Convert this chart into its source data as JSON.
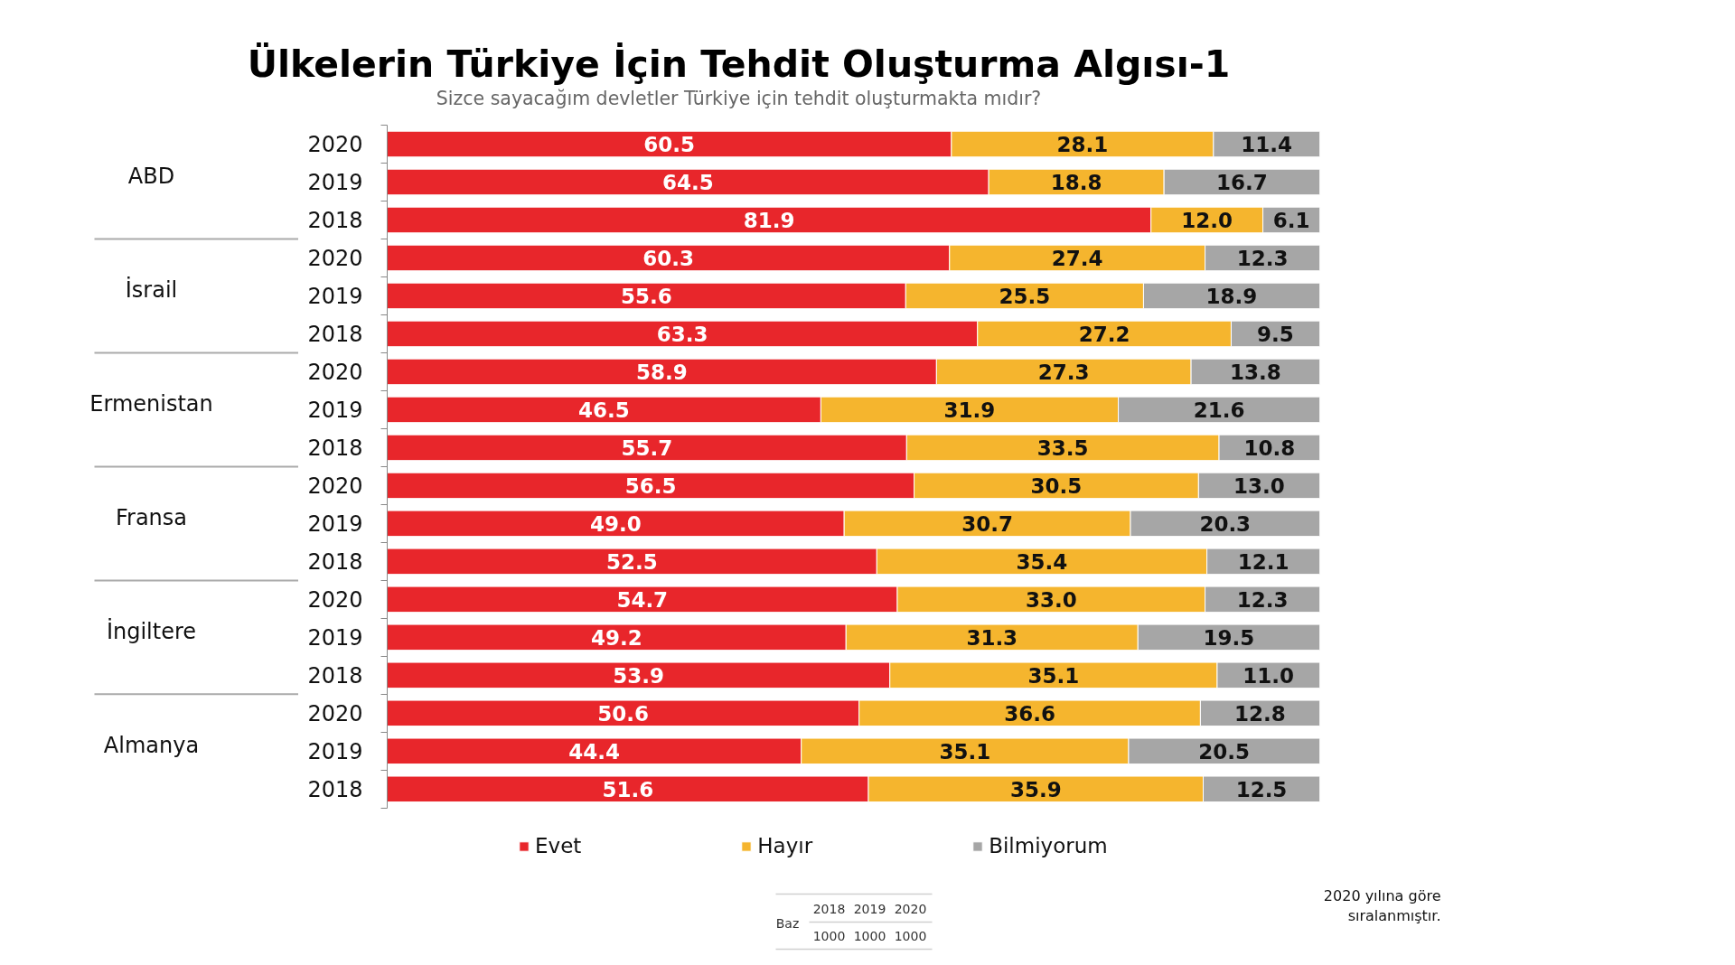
{
  "chart_data": {
    "type": "bar",
    "orientation": "horizontal",
    "stacked": true,
    "title": "Ülkelerin Türkiye İçin Tehdit Oluşturma Algısı-1",
    "subtitle": "Sizce sayacağım devletler Türkiye için tehdit oluşturmakta mıdır?",
    "categories": [
      "2020",
      "2019",
      "2018",
      "2020",
      "2019",
      "2018",
      "2020",
      "2019",
      "2018",
      "2020",
      "2019",
      "2018",
      "2020",
      "2019",
      "2018",
      "2020",
      "2019",
      "2018"
    ],
    "series": [
      {
        "name": "Evet",
        "color": "#e8262b",
        "values": [
          60.5,
          64.5,
          81.9,
          60.3,
          55.6,
          63.3,
          58.9,
          46.5,
          55.7,
          56.5,
          49.0,
          52.5,
          54.7,
          49.2,
          53.9,
          50.6,
          44.4,
          51.6
        ],
        "value_labels": [
          "60.5",
          "64.5",
          "81.9",
          "60.3",
          "55.6",
          "63.3",
          "58.9",
          "46.5",
          "55.7",
          "56.5",
          "49.0",
          "52.5",
          "54.7",
          "49.2",
          "53.9",
          "50.6",
          "44.4",
          "51.6"
        ]
      },
      {
        "name": "Hayır",
        "color": "#f5b52e",
        "values": [
          28.1,
          18.8,
          12.0,
          27.4,
          25.5,
          27.2,
          27.3,
          31.9,
          33.5,
          30.5,
          30.7,
          35.4,
          33.0,
          31.3,
          35.1,
          36.6,
          35.1,
          35.9
        ],
        "value_labels": [
          "28.1",
          "18.8",
          "12.0",
          "27.4",
          "25.5",
          "27.2",
          "27.3",
          "31.9",
          "33.5",
          "30.5",
          "30.7",
          "35.4",
          "33.0",
          "31.3",
          "35.1",
          "36.6",
          "35.1",
          "35.9"
        ]
      },
      {
        "name": "Bilmiyorum",
        "color": "#a6a6a6",
        "values": [
          11.4,
          16.7,
          6.1,
          12.3,
          18.9,
          9.5,
          13.8,
          21.6,
          10.8,
          13.0,
          20.3,
          12.1,
          12.3,
          19.5,
          11.0,
          12.8,
          20.5,
          12.5
        ],
        "value_labels": [
          "11.4",
          "16.7",
          "6.1",
          "12.3",
          "18.9",
          "9.5",
          "13.8",
          "21.6",
          "10.8",
          "13.0",
          "20.3",
          "12.1",
          "12.3",
          "19.5",
          "11.0",
          "12.8",
          "20.5",
          "12.5"
        ]
      }
    ],
    "xlim": [
      0,
      100
    ],
    "tick_labels": "y",
    "legend": "bottom",
    "annotations": [
      "ABD",
      "İsrail",
      "Ermenistan",
      "Fransa",
      "İngiltere",
      "Almanya",
      "Baz",
      "2018",
      "2019",
      "2020",
      "1000",
      "1000",
      "1000",
      "2020 yılına göre sıralanmıştır."
    ]
  }
}
